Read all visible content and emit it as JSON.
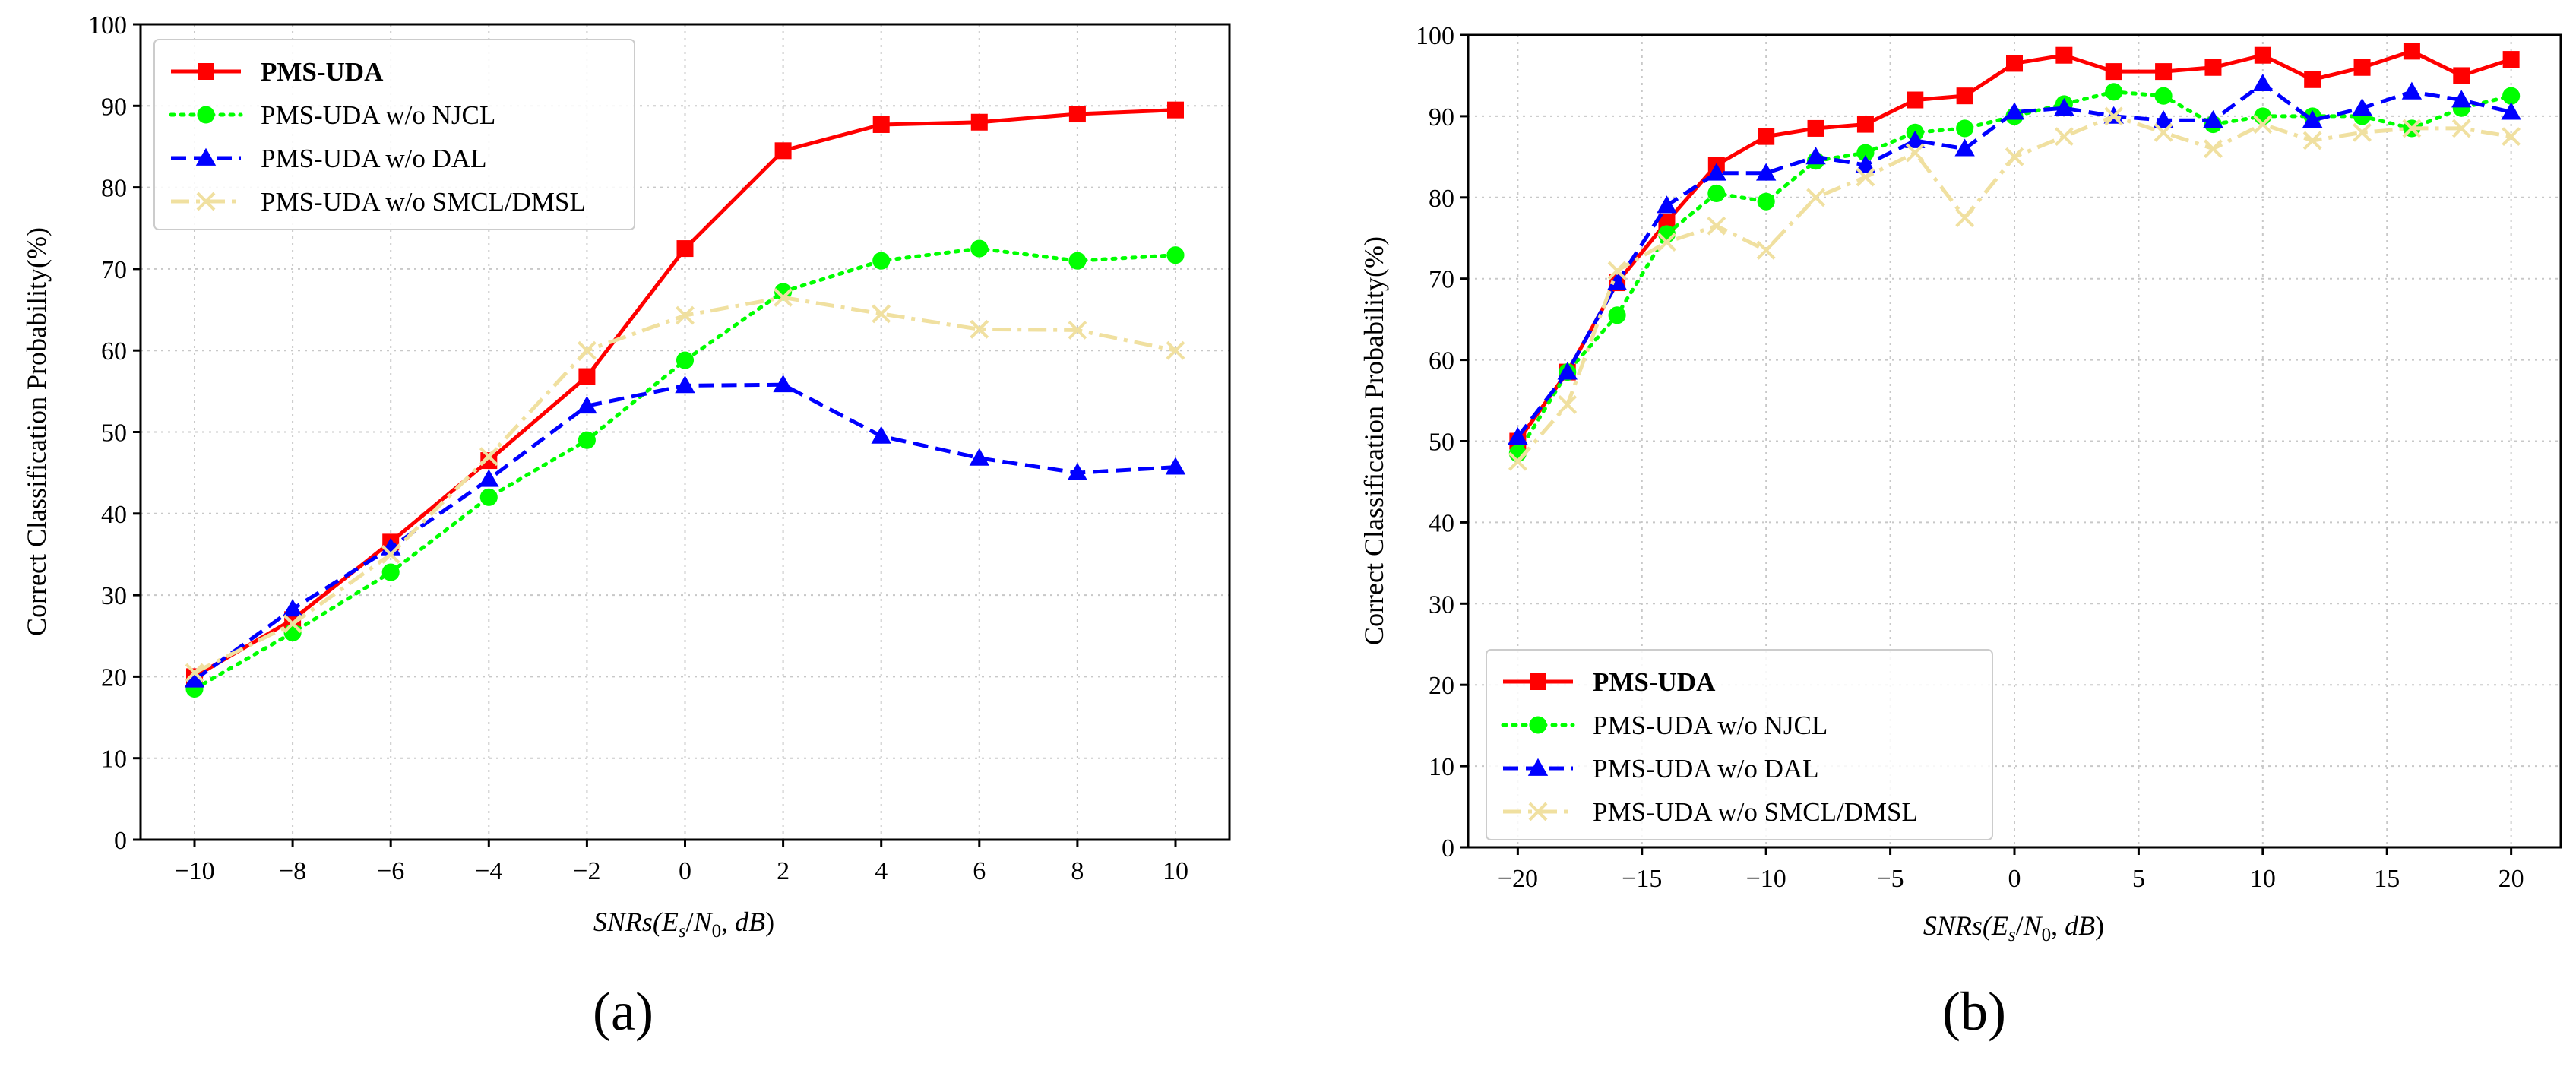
{
  "chart_data": [
    {
      "type": "line",
      "panel_label": "(a)",
      "title": "",
      "xlabel_parts": [
        "SNRs(",
        "E",
        "s",
        "/",
        "N",
        "0",
        ", ",
        "dB",
        ")"
      ],
      "ylabel": "Correct Classification Probability(%)",
      "xlim": [
        -11.1,
        11.1
      ],
      "ylim": [
        0,
        100
      ],
      "xticks": [
        -10,
        -8,
        -6,
        -4,
        -2,
        0,
        2,
        4,
        6,
        8,
        10
      ],
      "xtick_labels": [
        "−10",
        "−8",
        "−6",
        "−4",
        "−2",
        "0",
        "2",
        "4",
        "6",
        "8",
        "10"
      ],
      "yticks": [
        0,
        10,
        20,
        30,
        40,
        50,
        60,
        70,
        80,
        90,
        100
      ],
      "ytick_labels": [
        "0",
        "10",
        "20",
        "30",
        "40",
        "50",
        "60",
        "70",
        "80",
        "90",
        "100"
      ],
      "grid": true,
      "legend_position": "top-left",
      "x": [
        -10,
        -8,
        -6,
        -4,
        -2,
        0,
        2,
        4,
        6,
        8,
        10
      ],
      "series": [
        {
          "name": "PMS-UDA",
          "bold": true,
          "color": "#ff0000",
          "dash": "solid",
          "marker": "square",
          "values": [
            20.0,
            27.0,
            36.5,
            46.5,
            56.8,
            72.5,
            84.5,
            87.7,
            88.0,
            89.0,
            89.5
          ]
        },
        {
          "name": "PMS-UDA w/o NJCL",
          "bold": false,
          "color": "#00ff00",
          "dash": "dotted",
          "marker": "circle",
          "values": [
            18.5,
            25.4,
            32.8,
            42.0,
            49.0,
            58.8,
            67.2,
            71.0,
            72.5,
            71.0,
            71.7
          ]
        },
        {
          "name": "PMS-UDA w/o DAL",
          "bold": false,
          "color": "#0000ff",
          "dash": "dashed",
          "marker": "triangle",
          "values": [
            19.6,
            28.3,
            35.8,
            44.2,
            53.2,
            55.7,
            55.8,
            49.5,
            46.8,
            45.0,
            45.7
          ]
        },
        {
          "name": "PMS-UDA w/o SMCL/DMSL",
          "bold": false,
          "color": "#f0e0a0",
          "dash": "dashdot",
          "marker": "x",
          "values": [
            20.5,
            26.5,
            35.0,
            47.0,
            60.0,
            64.3,
            66.5,
            64.5,
            62.6,
            62.5,
            60.0
          ]
        }
      ]
    },
    {
      "type": "line",
      "panel_label": "(b)",
      "title": "",
      "xlabel_parts": [
        "SNRs(",
        "E",
        "s",
        "/",
        "N",
        "0",
        ", ",
        "dB",
        ")"
      ],
      "ylabel": "Correct Classification Probability(%)",
      "xlim": [
        -22,
        22
      ],
      "ylim": [
        0,
        100
      ],
      "xticks": [
        -20,
        -15,
        -10,
        -5,
        0,
        5,
        10,
        15,
        20
      ],
      "xtick_labels": [
        "−20",
        "−15",
        "−10",
        "−5",
        "0",
        "5",
        "10",
        "15",
        "20"
      ],
      "yticks": [
        0,
        10,
        20,
        30,
        40,
        50,
        60,
        70,
        80,
        90,
        100
      ],
      "ytick_labels": [
        "0",
        "10",
        "20",
        "30",
        "40",
        "50",
        "60",
        "70",
        "80",
        "90",
        "100"
      ],
      "grid": true,
      "legend_position": "bottom-left",
      "x": [
        -20,
        -18,
        -16,
        -14,
        -12,
        -10,
        -8,
        -6,
        -4,
        -2,
        0,
        2,
        4,
        6,
        8,
        10,
        12,
        14,
        16,
        18,
        20
      ],
      "series": [
        {
          "name": "PMS-UDA",
          "bold": true,
          "color": "#ff0000",
          "dash": "solid",
          "marker": "square",
          "values": [
            50.0,
            58.5,
            69.5,
            77.0,
            84.0,
            87.5,
            88.5,
            89.0,
            92.0,
            92.5,
            96.5,
            97.5,
            95.5,
            95.5,
            96.0,
            97.5,
            94.5,
            96.0,
            98.0,
            95.0,
            97.0
          ]
        },
        {
          "name": "PMS-UDA w/o NJCL",
          "bold": false,
          "color": "#00ff00",
          "dash": "dotted",
          "marker": "circle",
          "values": [
            48.5,
            58.5,
            65.5,
            75.5,
            80.5,
            79.5,
            84.5,
            85.5,
            88.0,
            88.5,
            90.0,
            91.5,
            93.0,
            92.5,
            89.0,
            90.0,
            90.0,
            90.0,
            88.5,
            91.0,
            92.5
          ]
        },
        {
          "name": "PMS-UDA w/o DAL",
          "bold": false,
          "color": "#0000ff",
          "dash": "dashed",
          "marker": "triangle",
          "values": [
            50.5,
            58.5,
            69.5,
            79.0,
            83.0,
            83.0,
            85.0,
            84.0,
            87.0,
            86.0,
            90.5,
            91.0,
            90.0,
            89.5,
            89.5,
            94.0,
            89.5,
            91.0,
            93.0,
            92.0,
            90.5
          ]
        },
        {
          "name": "PMS-UDA w/o SMCL/DMSL",
          "bold": false,
          "color": "#f0e0a0",
          "dash": "dashdot",
          "marker": "x",
          "values": [
            47.5,
            54.5,
            71.0,
            74.5,
            76.5,
            73.5,
            80.0,
            82.5,
            85.5,
            77.5,
            85.0,
            87.5,
            90.0,
            88.0,
            86.0,
            89.0,
            87.0,
            88.0,
            88.5,
            88.5,
            87.5
          ]
        }
      ]
    }
  ]
}
